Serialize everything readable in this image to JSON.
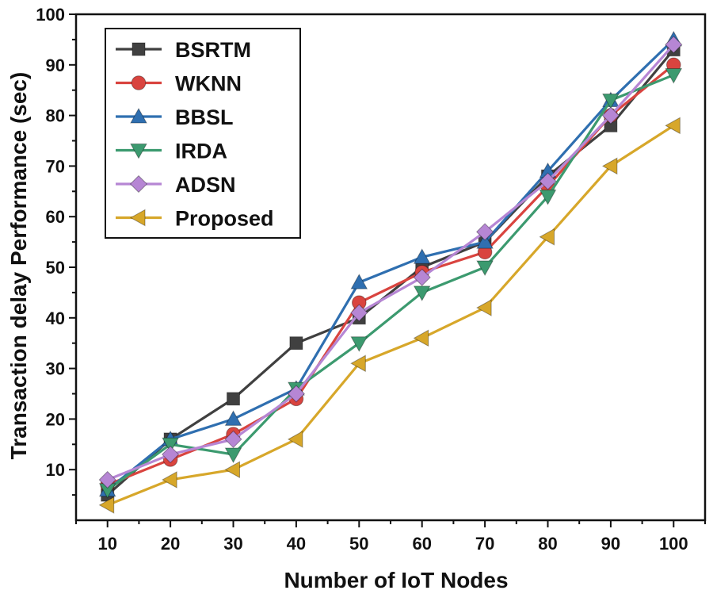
{
  "chart_data": {
    "type": "line",
    "title": "",
    "xlabel": "Number of IoT Nodes",
    "ylabel": "Transaction delay Performance (sec)",
    "x": [
      10,
      20,
      30,
      40,
      50,
      60,
      70,
      80,
      90,
      100
    ],
    "xlim": [
      5,
      105
    ],
    "ylim": [
      0,
      100
    ],
    "xticks": [
      "10",
      "20",
      "30",
      "40",
      "50",
      "60",
      "70",
      "80",
      "90",
      "100"
    ],
    "yticks": [
      "10",
      "20",
      "30",
      "40",
      "50",
      "60",
      "70",
      "80",
      "90",
      "100"
    ],
    "legend_position": "top-left",
    "grid": false,
    "series": [
      {
        "name": "BSRTM",
        "marker": "square",
        "color": "#404040",
        "values": [
          5,
          16,
          24,
          35,
          40,
          50,
          55,
          68,
          78,
          93
        ]
      },
      {
        "name": "WKNN",
        "marker": "circle",
        "color": "#d9443f",
        "values": [
          7,
          12,
          17,
          24,
          43,
          49,
          53,
          66,
          80,
          90
        ]
      },
      {
        "name": "BBSL",
        "marker": "triangle-up",
        "color": "#2f6fb0",
        "values": [
          6,
          16,
          20,
          26,
          47,
          52,
          55,
          69,
          83,
          95
        ]
      },
      {
        "name": "IRDA",
        "marker": "triangle-down",
        "color": "#3c9a6f",
        "values": [
          6,
          15,
          13,
          26,
          35,
          45,
          50,
          64,
          83,
          88
        ]
      },
      {
        "name": "ADSN",
        "marker": "diamond",
        "color": "#b686d4",
        "values": [
          8,
          13,
          16,
          25,
          41,
          48,
          57,
          67,
          80,
          94
        ]
      },
      {
        "name": "Proposed",
        "marker": "triangle-left",
        "color": "#d7a72a",
        "values": [
          3,
          8,
          10,
          16,
          31,
          36,
          42,
          56,
          70,
          78
        ]
      }
    ]
  }
}
